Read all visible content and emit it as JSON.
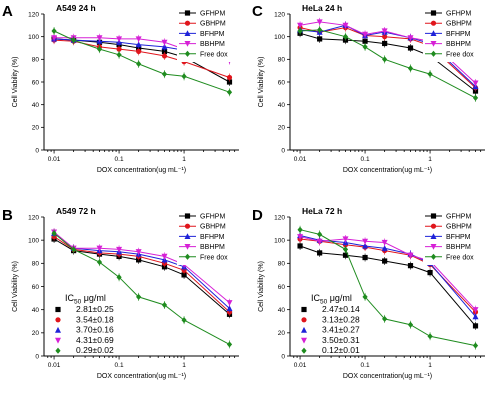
{
  "colors": {
    "GFHPM": "#000000",
    "GBHPM": "#e0151c",
    "BFHPM": "#1e22d8",
    "BBHPM": "#d620d6",
    "Free dox": "#1f8c1f"
  },
  "markers": {
    "GFHPM": "square",
    "GBHPM": "circle",
    "BFHPM": "triangle-up",
    "BBHPM": "triangle-down",
    "Free dox": "diamond"
  },
  "chart_data": [
    {
      "panel": "A",
      "title": "A549 24 h",
      "type": "line",
      "xlabel": "DOX concentration(ug mL⁻¹)",
      "ylabel": "Cell Viability (%)",
      "xscale": "log",
      "xlim": [
        0.007,
        7
      ],
      "ylim": [
        0,
        120
      ],
      "xticks": [
        "0.01",
        "0.1",
        "1"
      ],
      "yticks": [
        "0",
        "20",
        "40",
        "60",
        "80",
        "100",
        "120"
      ],
      "x": [
        0.01,
        0.02,
        0.05,
        0.1,
        0.2,
        0.5,
        1,
        5
      ],
      "legend": "top-right",
      "series": [
        {
          "name": "GFHPM",
          "values": [
            98,
            97,
            95,
            93,
            90,
            87,
            82,
            60
          ]
        },
        {
          "name": "GBHPM",
          "values": [
            97,
            96,
            91,
            89,
            87,
            83,
            78,
            64
          ]
        },
        {
          "name": "BFHPM",
          "values": [
            98,
            97,
            96,
            95,
            93,
            91,
            88,
            80
          ]
        },
        {
          "name": "BBHPM",
          "values": [
            99,
            99,
            99,
            98,
            98,
            95,
            89,
            79
          ]
        },
        {
          "name": "Free dox",
          "values": [
            105,
            97,
            89,
            84,
            76,
            67,
            65,
            51
          ]
        }
      ]
    },
    {
      "panel": "C",
      "title": "HeLa 24 h",
      "type": "line",
      "xlabel": "DOX concentration(ug mL⁻¹)",
      "ylabel": "Cell Viability (%)",
      "xscale": "log",
      "xlim": [
        0.007,
        7
      ],
      "ylim": [
        0,
        120
      ],
      "xticks": [
        "0.01",
        "0.1",
        "1"
      ],
      "yticks": [
        "0",
        "20",
        "40",
        "60",
        "80",
        "100",
        "120"
      ],
      "x": [
        0.01,
        0.02,
        0.05,
        0.1,
        0.2,
        0.5,
        1,
        5
      ],
      "legend": "top-right",
      "series": [
        {
          "name": "GFHPM",
          "values": [
            103,
            98,
            97,
            96,
            94,
            90,
            83,
            52
          ]
        },
        {
          "name": "GBHPM",
          "values": [
            108,
            104,
            108,
            101,
            100,
            98,
            92,
            55
          ]
        },
        {
          "name": "BFHPM",
          "values": [
            106,
            104,
            110,
            101,
            104,
            99,
            94,
            56
          ]
        },
        {
          "name": "BBHPM",
          "values": [
            110,
            113,
            110,
            102,
            105,
            99,
            96,
            59
          ]
        },
        {
          "name": "Free dox",
          "values": [
            105,
            106,
            100,
            91,
            80,
            72,
            67,
            46
          ]
        }
      ]
    },
    {
      "panel": "B",
      "title": "A549 72 h",
      "type": "line",
      "xlabel": "DOX concentration(ug mL⁻¹)",
      "ylabel": "Cell Viability (%)",
      "xscale": "log",
      "xlim": [
        0.007,
        7
      ],
      "ylim": [
        0,
        120
      ],
      "xticks": [
        "0.01",
        "0.1",
        "1"
      ],
      "yticks": [
        "0",
        "20",
        "40",
        "60",
        "80",
        "100",
        "120"
      ],
      "x": [
        0.01,
        0.02,
        0.05,
        0.1,
        0.2,
        0.5,
        1,
        5
      ],
      "legend": "top-right",
      "series": [
        {
          "name": "GFHPM",
          "values": [
            101,
            91,
            88,
            86,
            83,
            77,
            70,
            36
          ]
        },
        {
          "name": "GBHPM",
          "values": [
            103,
            92,
            89,
            88,
            86,
            80,
            74,
            38
          ]
        },
        {
          "name": "BFHPM",
          "values": [
            106,
            93,
            91,
            90,
            88,
            83,
            77,
            41
          ]
        },
        {
          "name": "BBHPM",
          "values": [
            107,
            93,
            93,
            92,
            90,
            86,
            79,
            46
          ]
        },
        {
          "name": "Free dox",
          "values": [
            106,
            92,
            81,
            68,
            51,
            44,
            31,
            10
          ]
        }
      ],
      "ic50": {
        "title_prefix": "IC",
        "title_sub": "50",
        "title_unit": " μg/ml",
        "values": [
          "2.81±0.25",
          "3.54±0.18",
          "3.70±0.16",
          "4.31±0.69",
          "0.29±0.02"
        ]
      }
    },
    {
      "panel": "D",
      "title": "HeLa 72 h",
      "type": "line",
      "xlabel": "DOX concentration(ug mL⁻¹)",
      "ylabel": "Cell Viability (%)",
      "xscale": "log",
      "xlim": [
        0.007,
        7
      ],
      "ylim": [
        0,
        120
      ],
      "xticks": [
        "0.01",
        "0.1",
        "1"
      ],
      "yticks": [
        "0",
        "20",
        "40",
        "60",
        "80",
        "100",
        "120"
      ],
      "x": [
        0.01,
        0.02,
        0.05,
        0.1,
        0.2,
        0.5,
        1,
        5
      ],
      "legend": "top-right",
      "series": [
        {
          "name": "GFHPM",
          "values": [
            95,
            89,
            87,
            85,
            82,
            78,
            72,
            26
          ]
        },
        {
          "name": "GBHPM",
          "values": [
            101,
            99,
            96,
            94,
            91,
            87,
            79,
            38
          ]
        },
        {
          "name": "BFHPM",
          "values": [
            104,
            100,
            98,
            95,
            93,
            88,
            80,
            34
          ]
        },
        {
          "name": "BBHPM",
          "values": [
            103,
            99,
            101,
            99,
            98,
            87,
            82,
            40
          ]
        },
        {
          "name": "Free dox",
          "values": [
            109,
            105,
            92,
            51,
            32,
            27,
            17,
            9
          ]
        }
      ],
      "ic50": {
        "title_prefix": "IC",
        "title_sub": "50",
        "title_unit": " μg/ml",
        "values": [
          "2.47±0.14",
          "3.13±0.28",
          "3.41±0.27",
          "3.50±0.31",
          "0.12±0.01"
        ]
      }
    }
  ]
}
